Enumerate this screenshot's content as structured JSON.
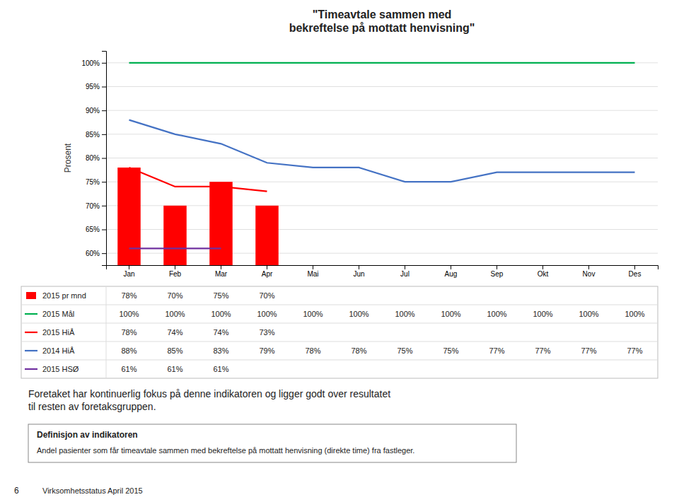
{
  "chart_data": {
    "type": "bar",
    "title": "\"Timeavtale sammen med\nbekreftelse på mottatt henvisning\"",
    "ylabel": "Prosent",
    "categories": [
      "Jan",
      "Feb",
      "Mar",
      "Apr",
      "Mai",
      "Jun",
      "Jul",
      "Aug",
      "Sep",
      "Okt",
      "Nov",
      "Des"
    ],
    "series": [
      {
        "name": "2015 pr mnd",
        "type": "bar",
        "color": "#FF0000",
        "values": [
          0.78,
          0.7,
          0.75,
          0.7,
          null,
          null,
          null,
          null,
          null,
          null,
          null,
          null
        ],
        "value_labels": [
          "78%",
          "70%",
          "75%",
          "70%",
          null,
          null,
          null,
          null,
          null,
          null,
          null,
          null
        ]
      },
      {
        "name": "2015 Mål",
        "type": "line",
        "color": "#00B050",
        "values": [
          1.0,
          1.0,
          1.0,
          1.0,
          1.0,
          1.0,
          1.0,
          1.0,
          1.0,
          1.0,
          1.0,
          1.0
        ],
        "value_labels": [
          "100%",
          "100%",
          "100%",
          "100%",
          "100%",
          "100%",
          "100%",
          "100%",
          "100%",
          "100%",
          "100%",
          "100%"
        ]
      },
      {
        "name": "2015 HiÅ",
        "type": "line",
        "color": "#FF0000",
        "values": [
          0.78,
          0.74,
          0.74,
          0.73,
          null,
          null,
          null,
          null,
          null,
          null,
          null,
          null
        ],
        "value_labels": [
          "78%",
          "74%",
          "74%",
          "73%",
          null,
          null,
          null,
          null,
          null,
          null,
          null,
          null
        ]
      },
      {
        "name": "2014 HiÅ",
        "type": "line",
        "color": "#4472C4",
        "values": [
          0.88,
          0.85,
          0.83,
          0.79,
          0.78,
          0.78,
          0.75,
          0.75,
          0.77,
          0.77,
          0.77,
          0.77
        ],
        "value_labels": [
          "88%",
          "85%",
          "83%",
          "79%",
          "78%",
          "78%",
          "75%",
          "75%",
          "77%",
          "77%",
          "77%",
          "77%"
        ]
      },
      {
        "name": "2015 HSØ",
        "type": "line",
        "color": "#7030A0",
        "values": [
          0.61,
          0.61,
          0.61,
          null,
          null,
          null,
          null,
          null,
          null,
          null,
          null,
          null
        ],
        "value_labels": [
          "61%",
          "61%",
          "61%",
          null,
          null,
          null,
          null,
          null,
          null,
          null,
          null,
          null
        ]
      }
    ],
    "ylim": [
      0.575,
      1.025
    ],
    "yticks": [
      {
        "value": 0.6,
        "label": "60%"
      },
      {
        "value": 0.65,
        "label": "65%"
      },
      {
        "value": 0.7,
        "label": "70%"
      },
      {
        "value": 0.75,
        "label": "75%"
      },
      {
        "value": 0.8,
        "label": "80%"
      },
      {
        "value": 0.85,
        "label": "85%"
      },
      {
        "value": 0.9,
        "label": "90%"
      },
      {
        "value": 0.95,
        "label": "95%"
      },
      {
        "value": 1.0,
        "label": "100%"
      }
    ],
    "grid": true,
    "legend": "bottom",
    "annotation": "Foretaket har kontinuerlig fokus på denne indikatoren og ligger godt over resultatet\ntil resten av foretaksgruppen.",
    "definition_title": "Definisjon av indikatoren",
    "definition_text": "Andel pasienter som får timeavtale sammen med bekreftelse på mottatt henvisning (direkte time) fra fastleger.",
    "footer": "Virksomhetsstatus April 2015",
    "page_number": "6"
  }
}
